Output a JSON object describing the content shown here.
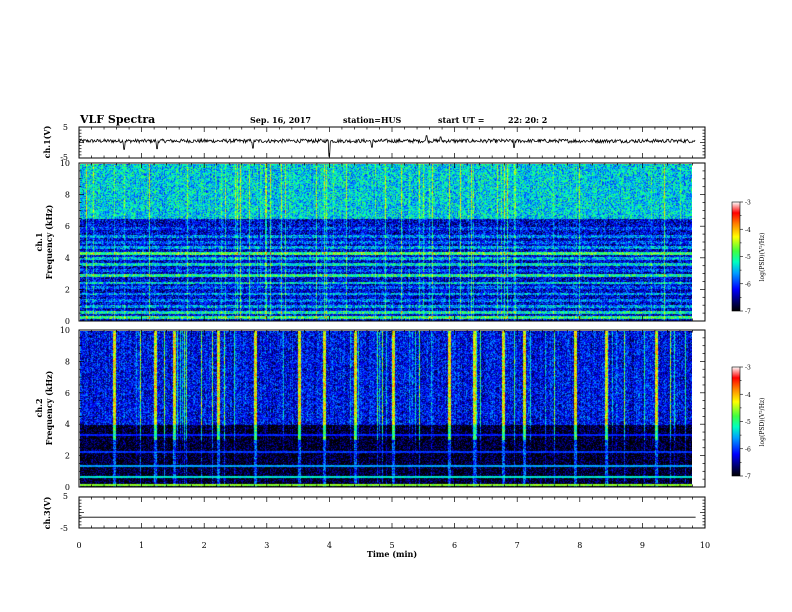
{
  "header": {
    "title": "VLF Spectra",
    "date": "Sep. 16, 2017",
    "station": "station=HUS",
    "start_label": "start  UT  =",
    "start_time": "22: 20: 2"
  },
  "colors": {
    "background": "#ffffff",
    "axis": "#000000",
    "colorbar": [
      "#000000",
      "#000060",
      "#0000ff",
      "#00a0ff",
      "#00ffc0",
      "#40ff40",
      "#ffff00",
      "#ff8000",
      "#ff0000",
      "#ffffff"
    ]
  },
  "chart_data": [
    {
      "id": "ch1_waveform",
      "type": "line",
      "ylabel": "ch.1(V)",
      "yticks": [
        "5",
        "-5"
      ],
      "ylim": [
        -5,
        5
      ],
      "xlim": [
        0,
        10
      ],
      "description_values": {
        "baseline_v": 0.5,
        "noise_amplitude_v": 0.6,
        "spikes_min": [
          0.72,
          1.25,
          2.78,
          4.0,
          4.68,
          5.55,
          5.78,
          6.95
        ],
        "spike_amplitude_v": [
          -2.2,
          -2.0,
          -1.8,
          -4.5,
          -1.5,
          2.2,
          1.8,
          -1.6
        ],
        "data_end_min": 9.85
      }
    },
    {
      "id": "ch1_spectrogram",
      "type": "heatmap",
      "ylabel": "ch.1",
      "ylabel2": "Frequency  (kHz)",
      "yticks": [
        "0",
        "2",
        "4",
        "6",
        "8",
        "10"
      ],
      "ylim": [
        0,
        10
      ],
      "xlim": [
        0,
        10
      ],
      "data_end_min": 9.85,
      "colorbar_label": "log(PSD)(V²/Hz)",
      "colorbar_ticks": [
        "-3",
        "-4",
        "-5",
        "-6",
        "-7"
      ],
      "colorbar_range": [
        -7,
        -3
      ],
      "background_level": -6.3,
      "enhanced_band_khz": [
        6.5,
        10.0
      ],
      "enhanced_band_level": -5.4,
      "horizontal_lines_khz": [
        0.2,
        0.5,
        0.9,
        1.3,
        1.7,
        2.1,
        2.4,
        2.9,
        3.2,
        3.6,
        4.0,
        4.3,
        4.7,
        5.0,
        5.4,
        5.9
      ],
      "horizontal_line_levels": [
        -5.0,
        -5.2,
        -5.6,
        -5.8,
        -5.6,
        -5.9,
        -5.4,
        -5.1,
        -5.9,
        -5.3,
        -5.5,
        -4.9,
        -5.6,
        -5.9,
        -5.7,
        -6.0
      ]
    },
    {
      "id": "ch2_spectrogram",
      "type": "heatmap",
      "ylabel": "ch.2",
      "ylabel2": "Frequency  (kHz)",
      "yticks": [
        "0",
        "2",
        "4",
        "6",
        "8",
        "10"
      ],
      "ylim": [
        0,
        10
      ],
      "xlim": [
        0,
        10
      ],
      "data_end_min": 9.85,
      "colorbar_label": "log(PSD)(V²/Hz)",
      "colorbar_ticks": [
        "-3",
        "-4",
        "-5",
        "-6",
        "-7"
      ],
      "colorbar_range": [
        -7,
        -3
      ],
      "upper_band_khz": [
        4.0,
        10.0
      ],
      "upper_band_level": -6.2,
      "lower_band_level": -6.9,
      "horizontal_lines_khz": [
        0.1,
        0.6,
        1.3,
        2.2,
        3.3
      ],
      "horizontal_line_levels": [
        -4.6,
        -5.3,
        -5.6,
        -6.0,
        -6.1
      ],
      "spike_events_min": [
        0.55,
        1.2,
        1.5,
        2.2,
        2.8,
        3.5,
        3.9,
        4.4,
        5.0,
        5.9,
        6.3,
        6.75,
        7.1,
        7.9,
        8.4,
        9.2
      ]
    },
    {
      "id": "ch3_waveform",
      "type": "line",
      "ylabel": "ch.3(V)",
      "yticks": [
        "5",
        "0",
        "-5"
      ],
      "ylim": [
        -5,
        5
      ],
      "xlim": [
        0,
        10
      ],
      "values_constant_v": -1.5,
      "data_end_min": 9.85,
      "xlabel": "Time  (min)",
      "xticks": [
        "0",
        "1",
        "2",
        "3",
        "4",
        "5",
        "6",
        "7",
        "8",
        "9",
        "10"
      ]
    }
  ]
}
